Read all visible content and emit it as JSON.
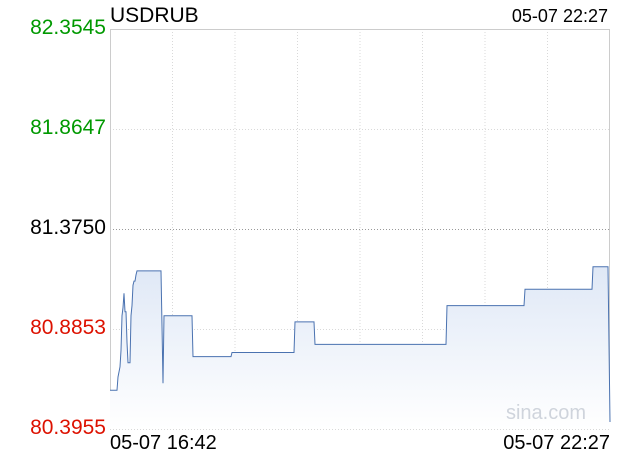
{
  "header": {
    "symbol": "USDRUB",
    "timestamp": "05-07 22:27"
  },
  "watermark": "sina.com",
  "colors": {
    "line": "#4a72b0",
    "fill_top": "#dfe8f6",
    "up": "#009900",
    "down": "#dd1100",
    "neutral": "#000000",
    "grid": "#d9d9d9",
    "baseline": "#999999"
  },
  "chart_data": {
    "type": "area",
    "title": "USDRUB",
    "y_ticks": [
      {
        "label": "82.3545",
        "value": 82.3545,
        "trend": "up"
      },
      {
        "label": "81.8647",
        "value": 81.8647,
        "trend": "up"
      },
      {
        "label": "81.3750",
        "value": 81.375,
        "trend": "neutral"
      },
      {
        "label": "80.8853",
        "value": 80.8853,
        "trend": "down"
      },
      {
        "label": "80.3955",
        "value": 80.3955,
        "trend": "down"
      }
    ],
    "ylim": [
      80.3955,
      82.3545
    ],
    "x_ticks": [
      "05-07 16:42",
      "05-07 22:27"
    ],
    "xlim": [
      0,
      500
    ],
    "grid": true,
    "series": [
      {
        "x": [
          0,
          7,
          8,
          10,
          11,
          12,
          13,
          14,
          15,
          16,
          17,
          18,
          19,
          20,
          21,
          22,
          23,
          24,
          25,
          26,
          27,
          29,
          30,
          31,
          51,
          52,
          53,
          54,
          55,
          82,
          83,
          121,
          122,
          184,
          185,
          204,
          205,
          336,
          337,
          414,
          415,
          482,
          483,
          498,
          500
        ],
        "y": [
          80.585,
          80.585,
          80.65,
          80.7,
          80.78,
          80.95,
          80.99,
          81.06,
          80.97,
          80.97,
          80.82,
          80.72,
          80.72,
          80.72,
          80.95,
          81.0,
          81.1,
          81.12,
          81.12,
          81.15,
          81.17,
          81.17,
          81.17,
          81.17,
          81.17,
          80.9,
          80.62,
          80.95,
          80.95,
          80.95,
          80.75,
          80.75,
          80.77,
          80.77,
          80.92,
          80.92,
          80.81,
          80.81,
          81.0,
          81.0,
          81.08,
          81.08,
          81.19,
          81.19,
          80.43
        ]
      }
    ]
  }
}
